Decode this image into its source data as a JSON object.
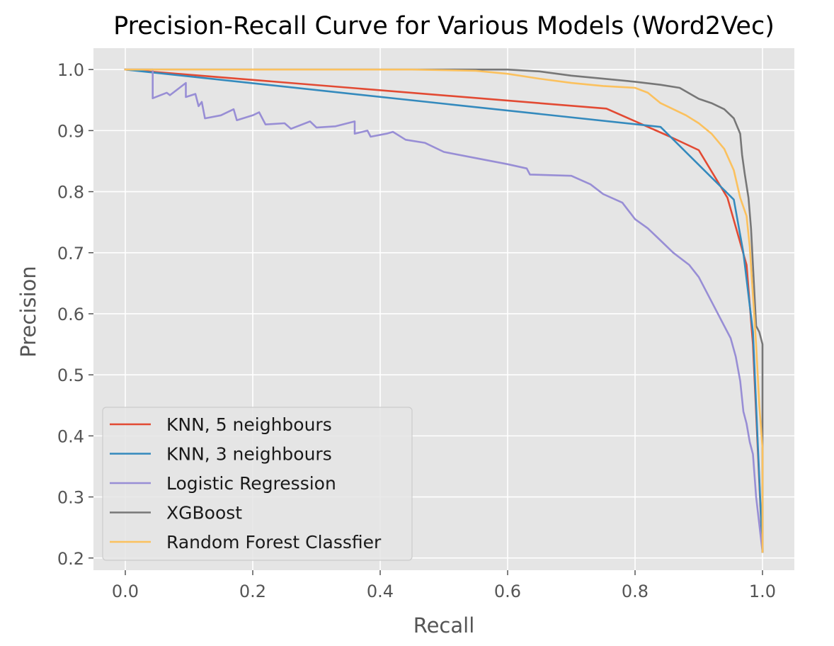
{
  "chart_data": {
    "type": "line",
    "title": "Precision-Recall Curve for Various Models (Word2Vec)",
    "xlabel": "Recall",
    "ylabel": "Precision",
    "xlim": [
      -0.05,
      1.05
    ],
    "ylim": [
      0.18,
      1.035
    ],
    "xticks": [
      "0.0",
      "0.2",
      "0.4",
      "0.6",
      "0.8",
      "1.0"
    ],
    "yticks": [
      "0.2",
      "0.3",
      "0.4",
      "0.5",
      "0.6",
      "0.7",
      "0.8",
      "0.9",
      "1.0"
    ],
    "grid": true,
    "legend_position": "lower-left",
    "series": [
      {
        "name": "KNN, 5 neighbours",
        "color": "#E24A33",
        "points": [
          [
            0.0,
            1.0
          ],
          [
            0.755,
            0.936
          ],
          [
            0.855,
            0.89
          ],
          [
            0.9,
            0.868
          ],
          [
            0.945,
            0.79
          ],
          [
            0.975,
            0.68
          ],
          [
            0.985,
            0.55
          ],
          [
            1.0,
            0.21
          ]
        ]
      },
      {
        "name": "KNN, 3 neighbours",
        "color": "#348ABD",
        "points": [
          [
            0.0,
            1.0
          ],
          [
            0.84,
            0.906
          ],
          [
            0.955,
            0.787
          ],
          [
            0.97,
            0.7
          ],
          [
            0.985,
            0.57
          ],
          [
            1.0,
            0.21
          ]
        ]
      },
      {
        "name": "Logistic Regression",
        "color": "#988ED5",
        "points": [
          [
            0.0,
            1.0
          ],
          [
            0.043,
            1.0
          ],
          [
            0.043,
            0.953
          ],
          [
            0.065,
            0.962
          ],
          [
            0.07,
            0.958
          ],
          [
            0.095,
            0.978
          ],
          [
            0.095,
            0.955
          ],
          [
            0.11,
            0.96
          ],
          [
            0.115,
            0.94
          ],
          [
            0.12,
            0.947
          ],
          [
            0.125,
            0.92
          ],
          [
            0.15,
            0.925
          ],
          [
            0.17,
            0.935
          ],
          [
            0.175,
            0.917
          ],
          [
            0.2,
            0.925
          ],
          [
            0.21,
            0.93
          ],
          [
            0.22,
            0.91
          ],
          [
            0.25,
            0.912
          ],
          [
            0.26,
            0.903
          ],
          [
            0.29,
            0.915
          ],
          [
            0.3,
            0.905
          ],
          [
            0.33,
            0.907
          ],
          [
            0.36,
            0.915
          ],
          [
            0.36,
            0.895
          ],
          [
            0.38,
            0.9
          ],
          [
            0.385,
            0.89
          ],
          [
            0.41,
            0.895
          ],
          [
            0.42,
            0.898
          ],
          [
            0.44,
            0.885
          ],
          [
            0.47,
            0.88
          ],
          [
            0.5,
            0.865
          ],
          [
            0.55,
            0.855
          ],
          [
            0.6,
            0.845
          ],
          [
            0.63,
            0.838
          ],
          [
            0.635,
            0.828
          ],
          [
            0.7,
            0.826
          ],
          [
            0.73,
            0.812
          ],
          [
            0.75,
            0.796
          ],
          [
            0.78,
            0.782
          ],
          [
            0.8,
            0.755
          ],
          [
            0.82,
            0.74
          ],
          [
            0.84,
            0.72
          ],
          [
            0.86,
            0.7
          ],
          [
            0.885,
            0.68
          ],
          [
            0.9,
            0.66
          ],
          [
            0.92,
            0.62
          ],
          [
            0.935,
            0.59
          ],
          [
            0.95,
            0.56
          ],
          [
            0.958,
            0.53
          ],
          [
            0.965,
            0.49
          ],
          [
            0.97,
            0.44
          ],
          [
            0.975,
            0.42
          ],
          [
            0.98,
            0.39
          ],
          [
            0.985,
            0.37
          ],
          [
            0.99,
            0.3
          ],
          [
            1.0,
            0.21
          ]
        ]
      },
      {
        "name": "XGBoost",
        "color": "#777777",
        "points": [
          [
            0.0,
            1.0
          ],
          [
            0.6,
            1.0
          ],
          [
            0.65,
            0.997
          ],
          [
            0.7,
            0.99
          ],
          [
            0.75,
            0.985
          ],
          [
            0.8,
            0.98
          ],
          [
            0.84,
            0.975
          ],
          [
            0.87,
            0.97
          ],
          [
            0.9,
            0.952
          ],
          [
            0.92,
            0.945
          ],
          [
            0.94,
            0.935
          ],
          [
            0.955,
            0.92
          ],
          [
            0.965,
            0.895
          ],
          [
            0.968,
            0.86
          ],
          [
            0.972,
            0.83
          ],
          [
            0.978,
            0.79
          ],
          [
            0.982,
            0.74
          ],
          [
            0.985,
            0.68
          ],
          [
            0.988,
            0.62
          ],
          [
            0.99,
            0.58
          ],
          [
            0.995,
            0.57
          ],
          [
            1.0,
            0.55
          ],
          [
            1.0,
            0.21
          ]
        ]
      },
      {
        "name": "Random Forest Classfier",
        "color": "#FBC15E",
        "points": [
          [
            0.0,
            1.0
          ],
          [
            0.45,
            1.0
          ],
          [
            0.55,
            0.998
          ],
          [
            0.6,
            0.993
          ],
          [
            0.65,
            0.985
          ],
          [
            0.7,
            0.978
          ],
          [
            0.75,
            0.973
          ],
          [
            0.8,
            0.97
          ],
          [
            0.82,
            0.962
          ],
          [
            0.84,
            0.945
          ],
          [
            0.86,
            0.935
          ],
          [
            0.88,
            0.925
          ],
          [
            0.9,
            0.912
          ],
          [
            0.92,
            0.895
          ],
          [
            0.94,
            0.87
          ],
          [
            0.955,
            0.835
          ],
          [
            0.965,
            0.79
          ],
          [
            0.975,
            0.76
          ],
          [
            0.98,
            0.71
          ],
          [
            0.985,
            0.63
          ],
          [
            0.99,
            0.55
          ],
          [
            0.995,
            0.45
          ],
          [
            1.0,
            0.38
          ],
          [
            1.0,
            0.21
          ]
        ]
      }
    ]
  }
}
